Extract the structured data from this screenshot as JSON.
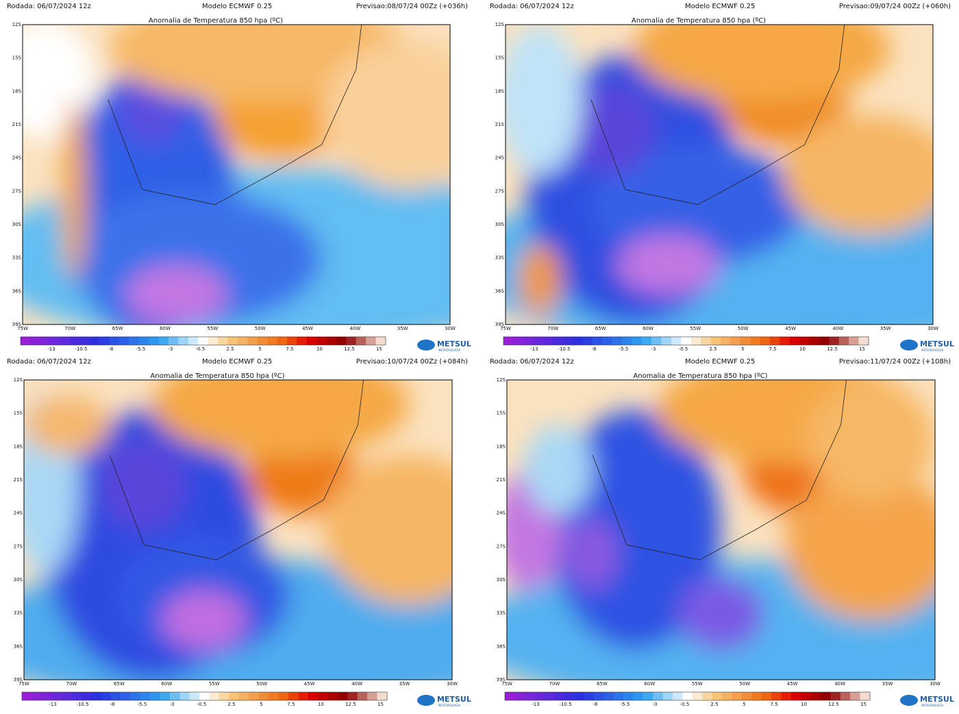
{
  "panels": [
    {
      "run": "Rodada: 06/07/2024 12z",
      "model": "Modelo ECMWF 0.25",
      "forecast": "Previsao:08/07/24 00Zz (+036h)",
      "title": "Anomalia de Temperatura 850 hpa (ºC)"
    },
    {
      "run": "Rodada: 06/07/2024 12z",
      "model": "Modelo ECMWF 0.25",
      "forecast": "Previsao:09/07/24 00Zz (+060h)",
      "title": "Anomalia de Temperatura 850 hpa (ºC)"
    },
    {
      "run": "Rodada: 06/07/2024 12z",
      "model": "Modelo ECMWF 0.25",
      "forecast": "Previsao:10/07/24 00Zz (+084h)",
      "title": "Anomalia de Temperatura 850 hpa (ºC)"
    },
    {
      "run": "Rodada: 06/07/2024 12z",
      "model": "Modelo ECMWF 0.25",
      "forecast": "Previsao:11/07/24 00Zz (+108h)",
      "title": "Anomalia de Temperatura 850 hpa (ºC)"
    }
  ],
  "lat_labels": [
    "12S",
    "15S",
    "18S",
    "21S",
    "24S",
    "27S",
    "30S",
    "33S",
    "36S",
    "39S"
  ],
  "lon_labels": [
    "75W",
    "70W",
    "65W",
    "60W",
    "55W",
    "50W",
    "45W",
    "40W",
    "35W",
    "30W"
  ],
  "colorbar_labels": [
    "-13",
    "-10.5",
    "-8",
    "-5.5",
    "-3",
    "-0.5",
    "2.5",
    "5",
    "7.5",
    "10",
    "12.5",
    "15"
  ],
  "logo": {
    "name": "METSUL",
    "tagline": "METEOROLOGIA"
  }
}
